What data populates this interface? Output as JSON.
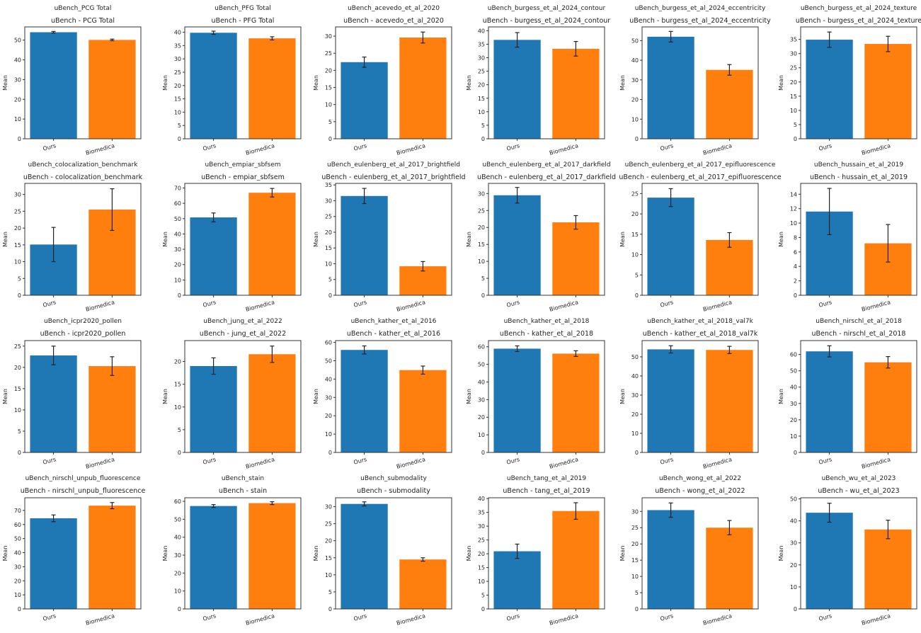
{
  "colors": {
    "ours": "#1f77b4",
    "biomedica": "#ff7f0e",
    "error_bar": "#222222"
  },
  "chart_data": [
    {
      "type": "bar",
      "suptitle": "uBench_PCG Total",
      "title": "uBench - PCG Total",
      "ylabel": "Mean",
      "categories": [
        "Ours",
        "Biomedica"
      ],
      "values": [
        54.0,
        50.1
      ],
      "errors": [
        0.4,
        0.4
      ],
      "ylim": [
        0,
        56.7
      ]
    },
    {
      "type": "bar",
      "suptitle": "uBench_PFG Total",
      "title": "uBench - PFG Total",
      "ylabel": "Mean",
      "categories": [
        "Ours",
        "Biomedica"
      ],
      "values": [
        39.8,
        37.7
      ],
      "errors": [
        0.6,
        0.6
      ],
      "ylim": [
        0,
        42
      ]
    },
    {
      "type": "bar",
      "suptitle": "uBench_acevedo_et_al_2020",
      "title": "uBench - acevedo_et_al_2020",
      "ylabel": "Mean",
      "categories": [
        "Ours",
        "Biomedica"
      ],
      "values": [
        22.4,
        29.6
      ],
      "errors": [
        1.5,
        1.6
      ],
      "ylim": [
        0,
        32.7
      ]
    },
    {
      "type": "bar",
      "suptitle": "uBench_burgess_et_al_2024_contour",
      "title": "uBench - burgess_et_al_2024_contour",
      "ylabel": "Mean",
      "categories": [
        "Ours",
        "Biomedica"
      ],
      "values": [
        36.6,
        33.3
      ],
      "errors": [
        2.7,
        2.7
      ],
      "ylim": [
        0,
        41.4
      ]
    },
    {
      "type": "bar",
      "suptitle": "uBench_burgess_et_al_2024_eccentricity",
      "title": "uBench - burgess_et_al_2024_eccentricity",
      "ylabel": "Mean",
      "categories": [
        "Ours",
        "Biomedica"
      ],
      "values": [
        52.0,
        35.1
      ],
      "errors": [
        2.7,
        2.7
      ],
      "ylim": [
        0,
        57
      ]
    },
    {
      "type": "bar",
      "suptitle": "uBench_burgess_et_al_2024_texture",
      "title": "uBench - burgess_et_al_2024_texture",
      "ylabel": "Mean",
      "categories": [
        "Ours",
        "Biomedica"
      ],
      "values": [
        34.9,
        33.4
      ],
      "errors": [
        2.7,
        2.7
      ],
      "ylim": [
        0,
        39.4
      ]
    },
    {
      "type": "bar",
      "suptitle": "uBench_colocalization_benchmark",
      "title": "uBench - colocalization_benchmark",
      "ylabel": "Mean",
      "categories": [
        "Ours",
        "Biomedica"
      ],
      "values": [
        15.1,
        25.5
      ],
      "errors": [
        5.1,
        6.2
      ],
      "ylim": [
        0,
        33.3
      ]
    },
    {
      "type": "bar",
      "suptitle": "uBench_empiar_sbfsem",
      "title": "uBench - empiar_sbfsem",
      "ylabel": "Mean",
      "categories": [
        "Ours",
        "Biomedica"
      ],
      "values": [
        50.8,
        66.9
      ],
      "errors": [
        2.9,
        2.8
      ],
      "ylim": [
        0,
        73
      ]
    },
    {
      "type": "bar",
      "suptitle": "uBench_eulenberg_et_al_2017_brightfield",
      "title": "uBench - eulenberg_et_al_2017_brightfield",
      "ylabel": "Mean",
      "categories": [
        "Ours",
        "Biomedica"
      ],
      "values": [
        31.5,
        9.2
      ],
      "errors": [
        2.4,
        1.5
      ],
      "ylim": [
        0,
        35.5
      ]
    },
    {
      "type": "bar",
      "suptitle": "uBench_eulenberg_et_al_2017_darkfield",
      "title": "uBench - eulenberg_et_al_2017_darkfield",
      "ylabel": "Mean",
      "categories": [
        "Ours",
        "Biomedica"
      ],
      "values": [
        29.5,
        21.5
      ],
      "errors": [
        2.3,
        2.0
      ],
      "ylim": [
        0,
        33
      ]
    },
    {
      "type": "bar",
      "suptitle": "uBench_eulenberg_et_al_2017_epifluorescence",
      "title": "uBench - eulenberg_et_al_2017_epifluorescence",
      "ylabel": "Mean",
      "categories": [
        "Ours",
        "Biomedica"
      ],
      "values": [
        24.0,
        13.6
      ],
      "errors": [
        2.2,
        1.8
      ],
      "ylim": [
        0,
        27.5
      ]
    },
    {
      "type": "bar",
      "suptitle": "uBench_hussain_et_al_2019",
      "title": "uBench - hussain_et_al_2019",
      "ylabel": "Mean",
      "categories": [
        "Ours",
        "Biomedica"
      ],
      "values": [
        11.6,
        7.2
      ],
      "errors": [
        3.2,
        2.6
      ],
      "ylim": [
        0,
        15.5
      ]
    },
    {
      "type": "bar",
      "suptitle": "uBench_icpr2020_pollen",
      "title": "uBench - icpr2020_pollen",
      "ylabel": "Mean",
      "categories": [
        "Ours",
        "Biomedica"
      ],
      "values": [
        22.8,
        20.3
      ],
      "errors": [
        2.2,
        2.2
      ],
      "ylim": [
        0,
        26.3
      ]
    },
    {
      "type": "bar",
      "suptitle": "uBench_jung_et_al_2022",
      "title": "uBench - jung_et_al_2022",
      "ylabel": "Mean",
      "categories": [
        "Ours",
        "Biomedica"
      ],
      "values": [
        19.0,
        21.6
      ],
      "errors": [
        1.8,
        1.8
      ],
      "ylim": [
        0,
        24.6
      ]
    },
    {
      "type": "bar",
      "suptitle": "uBench_kather_et_al_2016",
      "title": "uBench - kather_et_al_2016",
      "ylabel": "Mean",
      "categories": [
        "Ours",
        "Biomedica"
      ],
      "values": [
        55.9,
        44.9
      ],
      "errors": [
        2.2,
        2.2
      ],
      "ylim": [
        0,
        61
      ]
    },
    {
      "type": "bar",
      "suptitle": "uBench_kather_et_al_2018",
      "title": "uBench - kather_et_al_2018",
      "ylabel": "Mean",
      "categories": [
        "Ours",
        "Biomedica"
      ],
      "values": [
        58.9,
        56.1
      ],
      "errors": [
        1.6,
        1.6
      ],
      "ylim": [
        0,
        63.5
      ]
    },
    {
      "type": "bar",
      "suptitle": "uBench_kather_et_al_2018_val7k",
      "title": "uBench - kather_et_al_2018_val7k",
      "ylabel": "Mean",
      "categories": [
        "Ours",
        "Biomedica"
      ],
      "values": [
        53.9,
        53.6
      ],
      "errors": [
        1.9,
        1.9
      ],
      "ylim": [
        0,
        58.5
      ]
    },
    {
      "type": "bar",
      "suptitle": "uBench_nirschl_et_al_2018",
      "title": "uBench - nirschl_et_al_2018",
      "ylabel": "Mean",
      "categories": [
        "Ours",
        "Biomedica"
      ],
      "values": [
        61.9,
        55.2
      ],
      "errors": [
        3.4,
        3.5
      ],
      "ylim": [
        0,
        68.5
      ]
    },
    {
      "type": "bar",
      "suptitle": "uBench_nirschl_unpub_fluorescence",
      "title": "uBench - nirschl_unpub_fluorescence",
      "ylabel": "Mean",
      "categories": [
        "Ours",
        "Biomedica"
      ],
      "values": [
        64.4,
        73.4
      ],
      "errors": [
        2.4,
        2.2
      ],
      "ylim": [
        0,
        79
      ]
    },
    {
      "type": "bar",
      "suptitle": "uBench_stain",
      "title": "uBench - stain",
      "ylabel": "Mean",
      "categories": [
        "Ours",
        "Biomedica"
      ],
      "values": [
        57.4,
        59.0
      ],
      "errors": [
        0.8,
        0.8
      ],
      "ylim": [
        0,
        62
      ]
    },
    {
      "type": "bar",
      "suptitle": "uBench_submodality",
      "title": "uBench - submodality",
      "ylabel": "Mean",
      "categories": [
        "Ours",
        "Biomedica"
      ],
      "values": [
        30.8,
        14.5
      ],
      "errors": [
        0.6,
        0.5
      ],
      "ylim": [
        0,
        32.6
      ]
    },
    {
      "type": "bar",
      "suptitle": "uBench_tang_et_al_2019",
      "title": "uBench - tang_et_al_2019",
      "ylabel": "Mean",
      "categories": [
        "Ours",
        "Biomedica"
      ],
      "values": [
        20.9,
        35.5
      ],
      "errors": [
        2.6,
        3.0
      ],
      "ylim": [
        0,
        40.3
      ]
    },
    {
      "type": "bar",
      "suptitle": "uBench_wong_et_al_2022",
      "title": "uBench - wong_et_al_2022",
      "ylabel": "Mean",
      "categories": [
        "Ours",
        "Biomedica"
      ],
      "values": [
        30.4,
        25.0
      ],
      "errors": [
        2.2,
        2.2
      ],
      "ylim": [
        0,
        34.2
      ]
    },
    {
      "type": "bar",
      "suptitle": "uBench_wu_et_al_2023",
      "title": "uBench - wu_et_al_2023",
      "ylabel": "Mean",
      "categories": [
        "Ours",
        "Biomedica"
      ],
      "values": [
        43.7,
        36.1
      ],
      "errors": [
        4.3,
        4.2
      ],
      "ylim": [
        0,
        50.5
      ]
    }
  ]
}
